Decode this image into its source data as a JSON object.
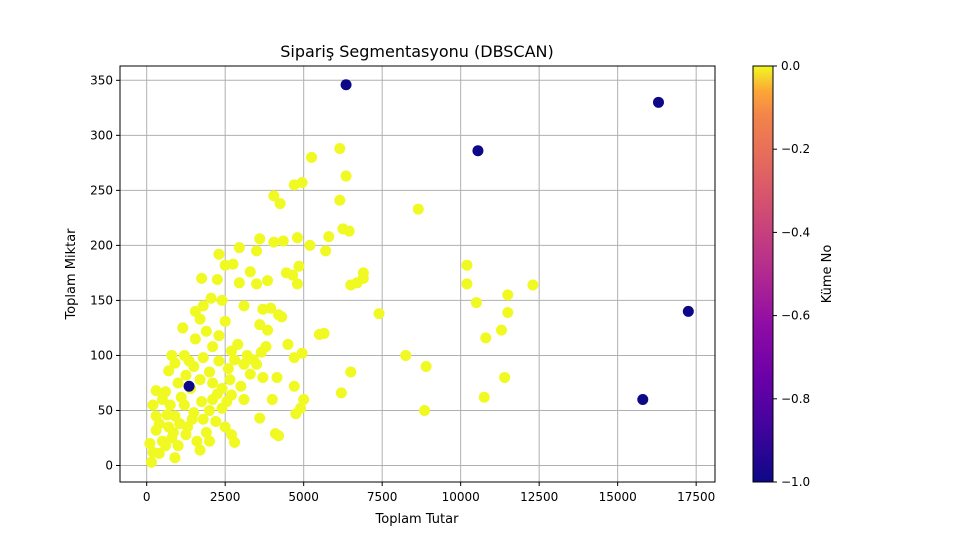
{
  "chart_data": {
    "type": "scatter",
    "title": "Sipariş Segmentasyonu (DBSCAN)",
    "xlabel": "Toplam Tutar",
    "ylabel": "Toplam Miktar",
    "xlim": [
      -850,
      18100
    ],
    "ylim": [
      -15,
      363
    ],
    "x_ticks": [
      0,
      2500,
      5000,
      7500,
      10000,
      12500,
      15000,
      17500
    ],
    "y_ticks": [
      0,
      50,
      100,
      150,
      200,
      250,
      300,
      350
    ],
    "grid": true,
    "colormap": "plasma",
    "colorbar": {
      "label": "Küme No",
      "range": [
        -1.0,
        0.0
      ],
      "ticks": [
        0.0,
        -0.2,
        -0.4,
        -0.6,
        -0.8,
        -1.0
      ],
      "tick_labels": [
        "0.0",
        "−0.2",
        "−0.4",
        "−0.6",
        "−0.8",
        "−1.0"
      ]
    },
    "colors": {
      "cluster_0": "#f0f921",
      "noise": "#0d0887",
      "grid": "#b0b0b0"
    },
    "clusters": [
      {
        "cluster": 0,
        "points": [
          [
            6150,
            288
          ],
          [
            5250,
            280
          ],
          [
            4950,
            257
          ],
          [
            4700,
            255
          ],
          [
            6350,
            263
          ],
          [
            4050,
            245
          ],
          [
            4250,
            238
          ],
          [
            6150,
            241
          ],
          [
            8650,
            233
          ],
          [
            6250,
            215
          ],
          [
            6450,
            213
          ],
          [
            2950,
            198
          ],
          [
            3600,
            206
          ],
          [
            4050,
            203
          ],
          [
            4350,
            204
          ],
          [
            4800,
            207
          ],
          [
            5200,
            200
          ],
          [
            5800,
            208
          ],
          [
            5700,
            195
          ],
          [
            2300,
            192
          ],
          [
            3500,
            195
          ],
          [
            2500,
            182
          ],
          [
            2750,
            183
          ],
          [
            4850,
            181
          ],
          [
            3300,
            176
          ],
          [
            1750,
            170
          ],
          [
            3850,
            168
          ],
          [
            4450,
            175
          ],
          [
            4650,
            173
          ],
          [
            6900,
            175
          ],
          [
            2250,
            169
          ],
          [
            2950,
            166
          ],
          [
            3500,
            165
          ],
          [
            4800,
            165
          ],
          [
            6500,
            164
          ],
          [
            6700,
            166
          ],
          [
            6900,
            170
          ],
          [
            10200,
            182
          ],
          [
            10200,
            165
          ],
          [
            12300,
            164
          ],
          [
            10500,
            148
          ],
          [
            11500,
            155
          ],
          [
            11500,
            139
          ],
          [
            7400,
            138
          ],
          [
            1550,
            140
          ],
          [
            1800,
            145
          ],
          [
            2050,
            152
          ],
          [
            2400,
            150
          ],
          [
            3100,
            145
          ],
          [
            3700,
            142
          ],
          [
            3950,
            143
          ],
          [
            4200,
            137
          ],
          [
            4300,
            135
          ],
          [
            3600,
            128
          ],
          [
            3850,
            123
          ],
          [
            1150,
            125
          ],
          [
            5500,
            119
          ],
          [
            5650,
            120
          ],
          [
            11300,
            123
          ],
          [
            10800,
            116
          ],
          [
            4500,
            110
          ],
          [
            4950,
            102
          ],
          [
            4700,
            98
          ],
          [
            3650,
            103
          ],
          [
            3400,
            96
          ],
          [
            800,
            100
          ],
          [
            8250,
            100
          ],
          [
            8900,
            90
          ],
          [
            6500,
            85
          ],
          [
            11400,
            80
          ],
          [
            4150,
            80
          ],
          [
            3700,
            80
          ],
          [
            4700,
            72
          ],
          [
            6200,
            66
          ],
          [
            10750,
            62
          ],
          [
            5000,
            60
          ],
          [
            4000,
            60
          ],
          [
            8850,
            50
          ],
          [
            4750,
            47
          ],
          [
            4900,
            52
          ],
          [
            3600,
            43
          ],
          [
            4100,
            29
          ],
          [
            4200,
            27
          ],
          [
            2700,
            28
          ],
          [
            2800,
            21
          ],
          [
            2000,
            22
          ],
          [
            1700,
            14
          ],
          [
            900,
            7
          ],
          [
            400,
            11
          ],
          [
            150,
            3
          ],
          [
            300,
            32
          ],
          [
            300,
            45
          ],
          [
            300,
            68
          ],
          [
            650,
            46
          ],
          [
            600,
            67
          ],
          [
            700,
            86
          ],
          [
            900,
            93
          ],
          [
            1200,
            100
          ],
          [
            1350,
            95
          ],
          [
            1550,
            115
          ],
          [
            1700,
            133
          ],
          [
            1900,
            122
          ],
          [
            2100,
            108
          ],
          [
            2300,
            118
          ],
          [
            2500,
            131
          ],
          [
            2700,
            104
          ],
          [
            2900,
            110
          ],
          [
            3100,
            92
          ],
          [
            1200,
            55
          ],
          [
            1500,
            48
          ],
          [
            1800,
            42
          ],
          [
            2100,
            60
          ],
          [
            2400,
            52
          ],
          [
            2700,
            64
          ],
          [
            3000,
            72
          ],
          [
            3300,
            83
          ],
          [
            3500,
            92
          ],
          [
            800,
            25
          ],
          [
            1000,
            18
          ],
          [
            1300,
            35
          ],
          [
            1600,
            22
          ],
          [
            1900,
            30
          ],
          [
            2200,
            40
          ],
          [
            2500,
            35
          ],
          [
            100,
            20
          ],
          [
            200,
            12
          ],
          [
            500,
            22
          ],
          [
            700,
            35
          ],
          [
            900,
            45
          ],
          [
            1100,
            62
          ],
          [
            1400,
            70
          ],
          [
            1700,
            78
          ],
          [
            2000,
            85
          ],
          [
            2300,
            95
          ],
          [
            2600,
            88
          ],
          [
            2800,
            96
          ],
          [
            200,
            55
          ],
          [
            400,
            38
          ],
          [
            500,
            60
          ],
          [
            750,
            55
          ],
          [
            1000,
            75
          ],
          [
            1250,
            82
          ],
          [
            1500,
            90
          ],
          [
            1800,
            98
          ],
          [
            2100,
            75
          ],
          [
            2400,
            70
          ],
          [
            2650,
            78
          ],
          [
            3200,
            100
          ],
          [
            3800,
            108
          ],
          [
            600,
            18
          ],
          [
            850,
            30
          ],
          [
            1050,
            38
          ],
          [
            1250,
            28
          ],
          [
            1450,
            42
          ],
          [
            1750,
            58
          ],
          [
            2000,
            50
          ],
          [
            2250,
            65
          ],
          [
            2550,
            58
          ],
          [
            3100,
            60
          ]
        ]
      },
      {
        "cluster": -1,
        "points": [
          [
            6350,
            346
          ],
          [
            16300,
            330
          ],
          [
            10550,
            286
          ],
          [
            17250,
            140
          ],
          [
            15800,
            60
          ],
          [
            1350,
            72
          ]
        ]
      }
    ]
  }
}
